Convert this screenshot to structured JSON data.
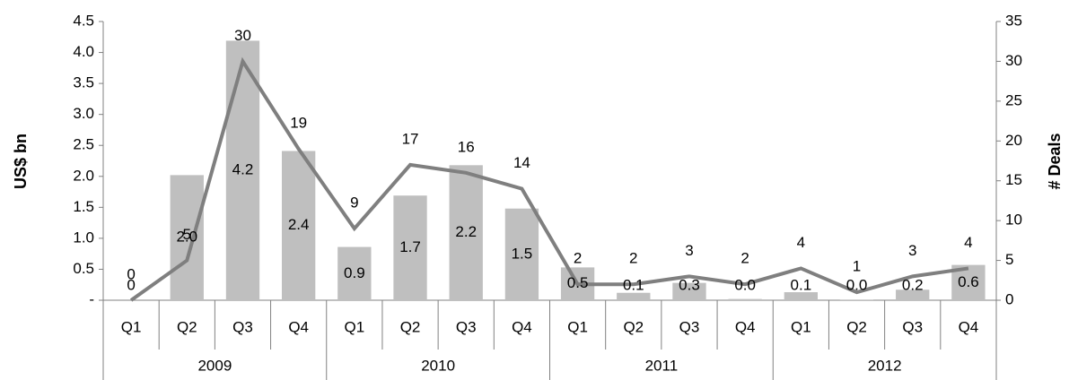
{
  "chart_data": {
    "type": "bar-line",
    "categories": [
      "Q1",
      "Q2",
      "Q3",
      "Q4",
      "Q1",
      "Q2",
      "Q3",
      "Q4",
      "Q1",
      "Q2",
      "Q3",
      "Q4",
      "Q1",
      "Q2",
      "Q3",
      "Q4"
    ],
    "years": [
      "2009",
      "2010",
      "2011",
      "2012"
    ],
    "y_label": "US$ bn",
    "y2_label": "# Deals",
    "ylim": [
      0,
      4.5
    ],
    "yticks": [
      {
        "value": 0,
        "label": "-"
      },
      0.5,
      {
        "value": 1,
        "label": "1.0"
      },
      1.5,
      {
        "value": 2,
        "label": "2.0"
      },
      2.5,
      {
        "value": 3,
        "label": "3.0"
      },
      3.5,
      {
        "value": 4,
        "label": "4.0"
      },
      4.5
    ],
    "y2lim": [
      0,
      35
    ],
    "y2ticks": [
      0,
      5,
      10,
      15,
      20,
      25,
      30,
      35
    ],
    "series": [
      {
        "name": "US$ bn",
        "type": "bar",
        "color": "#bfbfbf",
        "values": [
          0,
          2.02,
          4.19,
          2.41,
          0.86,
          1.69,
          2.18,
          1.48,
          0.53,
          0.12,
          0.28,
          0.02,
          0.13,
          0.01,
          0.17,
          0.57
        ],
        "value_labels": [
          "0",
          "2.0",
          "4.2",
          "2.4",
          "0.9",
          "1.7",
          "2.2",
          "1.5",
          "0.5",
          "0.1",
          "0.3",
          "0.0",
          "0.1",
          "0.0",
          "0.2",
          "0.6"
        ]
      },
      {
        "name": "# Deals",
        "type": "line",
        "axis": "y2",
        "color": "#7f7f7f",
        "values": [
          0,
          5,
          30,
          19,
          9,
          17,
          16,
          14,
          2,
          2,
          3,
          2,
          4,
          1,
          3,
          4
        ]
      }
    ]
  }
}
